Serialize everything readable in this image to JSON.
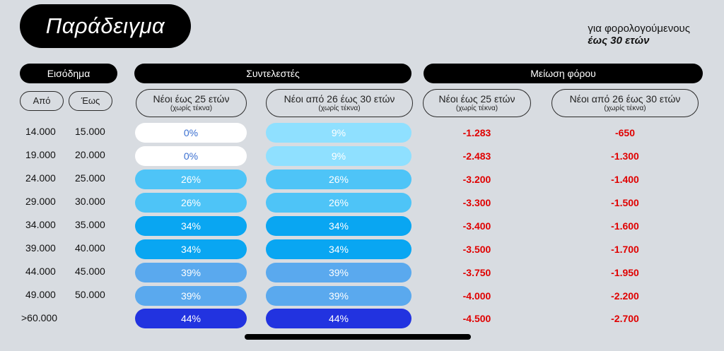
{
  "title": "Παράδειγμα",
  "subtitle": {
    "line1": "για φορολογούμενους",
    "line2": "έως 30 ετών"
  },
  "headers": {
    "income": "Εισόδημα",
    "rates": "Συντελεστές",
    "reduction": "Μείωση φόρου"
  },
  "income_sub": {
    "from": "Από",
    "to": "Έως"
  },
  "groups": {
    "rate_a": {
      "label": "Νέοι έως 25 ετών",
      "note": "(χωρίς τέκνα)"
    },
    "rate_b": {
      "label": "Νέοι από 26 έως 30 ετών",
      "note": "(χωρίς τέκνα)"
    },
    "red_a": {
      "label": "Νέοι έως 25 ετών",
      "note": "(χωρίς τέκνα)"
    },
    "red_b": {
      "label": "Νέοι από 26 έως 30 ετών",
      "note": "(χωρίς τέκνα)"
    }
  },
  "colors": {
    "white": "#ffffff",
    "light": "#8fe0ff",
    "mid": "#4ec4f7",
    "bright": "#09a6f2",
    "soft_blue": "#5aa9ee",
    "deep": "#2233e0",
    "text_blue": "#3a6fd0",
    "text_white": "#ffffff",
    "red": "#e00000"
  },
  "rows": [
    {
      "from": "14.000",
      "to": "15.000",
      "rate_a": "0%",
      "rate_b": "9%",
      "red_a": "-1.283",
      "red_b": "-650"
    },
    {
      "from": "19.000",
      "to": "20.000",
      "rate_a": "0%",
      "rate_b": "9%",
      "red_a": "-2.483",
      "red_b": "-1.300"
    },
    {
      "from": "24.000",
      "to": "25.000",
      "rate_a": "26%",
      "rate_b": "26%",
      "red_a": "-3.200",
      "red_b": "-1.400"
    },
    {
      "from": "29.000",
      "to": "30.000",
      "rate_a": "26%",
      "rate_b": "26%",
      "red_a": "-3.300",
      "red_b": "-1.500"
    },
    {
      "from": "34.000",
      "to": "35.000",
      "rate_a": "34%",
      "rate_b": "34%",
      "red_a": "-3.400",
      "red_b": "-1.600"
    },
    {
      "from": "39.000",
      "to": "40.000",
      "rate_a": "34%",
      "rate_b": "34%",
      "red_a": "-3.500",
      "red_b": "-1.700"
    },
    {
      "from": "44.000",
      "to": "45.000",
      "rate_a": "39%",
      "rate_b": "39%",
      "red_a": "-3.750",
      "red_b": "-1.950"
    },
    {
      "from": "49.000",
      "to": "50.000",
      "rate_a": "39%",
      "rate_b": "39%",
      "red_a": "-4.000",
      "red_b": "-2.200"
    },
    {
      "from": ">60.000",
      "to": "",
      "rate_a": "44%",
      "rate_b": "44%",
      "red_a": "-4.500",
      "red_b": "-2.700"
    }
  ]
}
